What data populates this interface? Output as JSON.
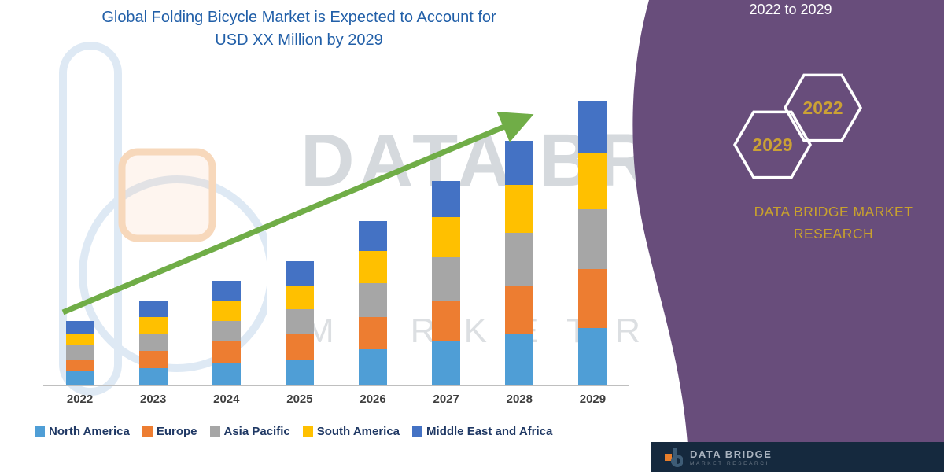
{
  "title": {
    "line1": "Global Folding Bicycle Market is Expected to Account for",
    "line2": "USD XX Million by 2029"
  },
  "side_panel": {
    "range_label": "2022 to 2029",
    "hexagon_front_year": "2029",
    "hexagon_back_year": "2022",
    "brand_line1": "DATA BRIDGE MARKET",
    "brand_line2": "RESEARCH",
    "background_color": "#684D7B",
    "accent_gold": "#CBA135"
  },
  "watermark": {
    "line1": "DATA BRI",
    "line2": "M A R K E T   R E S"
  },
  "footer": {
    "brand": "DATA BRIDGE",
    "sub": "MARKET RESEARCH",
    "background_color": "#15293E"
  },
  "trend_arrow_color": "#70AD47",
  "chart_data": {
    "type": "bar",
    "stacked": true,
    "title": "Global Folding Bicycle Market is Expected to Account for USD XX Million by 2029",
    "xlabel": "",
    "ylabel": "",
    "categories": [
      "2022",
      "2023",
      "2024",
      "2025",
      "2026",
      "2027",
      "2028",
      "2029"
    ],
    "series": [
      {
        "name": "North America",
        "color": "#4F9ED6",
        "values": [
          18,
          22,
          28,
          32,
          45,
          55,
          65,
          72
        ]
      },
      {
        "name": "Europe",
        "color": "#ED7D31",
        "values": [
          14,
          21,
          27,
          33,
          40,
          50,
          60,
          73
        ]
      },
      {
        "name": "Asia Pacific",
        "color": "#A6A6A6",
        "values": [
          18,
          22,
          25,
          30,
          43,
          55,
          65,
          75
        ]
      },
      {
        "name": "South America",
        "color": "#FFC000",
        "values": [
          15,
          20,
          25,
          30,
          40,
          50,
          60,
          70
        ]
      },
      {
        "name": "Middle East and Africa",
        "color": "#4472C4",
        "values": [
          15,
          20,
          25,
          30,
          37,
          45,
          55,
          65
        ]
      }
    ],
    "totals": [
      80,
      105,
      130,
      155,
      205,
      255,
      305,
      355
    ],
    "values_estimated": true,
    "ylim": [
      0,
      380
    ],
    "grid": false,
    "legend_position": "bottom",
    "annotations": [
      "upward green trend arrow from 2022 to 2029"
    ]
  }
}
